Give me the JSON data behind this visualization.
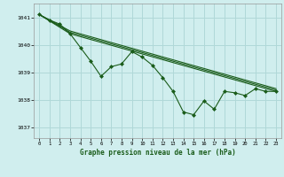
{
  "title": "Graphe pression niveau de la mer (hPa)",
  "background_color": "#d0eeee",
  "grid_color": "#b0d8d8",
  "line_color": "#1a5c1a",
  "marker_color": "#1a5c1a",
  "xlim": [
    -0.5,
    23.5
  ],
  "ylim": [
    1036.6,
    1041.5
  ],
  "yticks": [
    1037,
    1038,
    1039,
    1040,
    1041
  ],
  "xticks": [
    0,
    1,
    2,
    3,
    4,
    5,
    6,
    7,
    8,
    9,
    10,
    11,
    12,
    13,
    14,
    15,
    16,
    17,
    18,
    19,
    20,
    21,
    22,
    23
  ],
  "line1_x": [
    0,
    1,
    2,
    3,
    4,
    5,
    6,
    7,
    8,
    9,
    10,
    11,
    12,
    13,
    14,
    15,
    16,
    17,
    18,
    19,
    20,
    21,
    22,
    23
  ],
  "line1_y": [
    1041.1,
    1040.9,
    1040.75,
    1040.4,
    1039.9,
    1039.4,
    1038.85,
    1039.2,
    1039.3,
    1039.75,
    1039.55,
    1039.25,
    1038.8,
    1038.3,
    1037.55,
    1037.45,
    1037.95,
    1037.65,
    1038.3,
    1038.25,
    1038.15,
    1038.4,
    1038.3,
    1038.3
  ],
  "line2_x": [
    0,
    3,
    23
  ],
  "line2_y": [
    1041.1,
    1040.4,
    1038.3
  ],
  "line3_x": [
    0,
    3,
    23
  ],
  "line3_y": [
    1041.1,
    1040.45,
    1038.35
  ],
  "line4_x": [
    0,
    3,
    23
  ],
  "line4_y": [
    1041.1,
    1040.5,
    1038.4
  ]
}
